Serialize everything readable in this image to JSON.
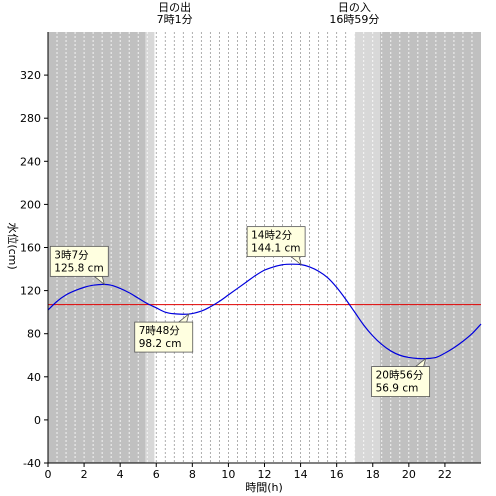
{
  "chart_data": {
    "type": "line",
    "x_unit": "h",
    "xlabel": "時間(h)",
    "ylabel": "水位(cm)",
    "xlim": [
      0,
      24
    ],
    "ylim": [
      -40,
      360
    ],
    "x_ticks": [
      0,
      2,
      4,
      6,
      8,
      10,
      12,
      14,
      16,
      18,
      20,
      22
    ],
    "y_ticks": [
      -40,
      0,
      40,
      80,
      120,
      160,
      200,
      240,
      280,
      320
    ],
    "grid": "vertical dotted every 0.5h",
    "reference_line": {
      "y": 107,
      "color": "#e00000"
    },
    "series": [
      {
        "color": "#0000dd",
        "x": [
          0,
          0.5,
          1,
          1.5,
          2,
          2.5,
          3.12,
          3.5,
          4,
          4.5,
          5,
          5.5,
          6,
          6.5,
          7,
          7.8,
          8.5,
          9,
          9.5,
          10,
          10.5,
          11,
          11.5,
          12,
          12.5,
          13,
          13.5,
          14.03,
          14.5,
          15,
          15.5,
          16,
          16.5,
          17,
          17.5,
          18,
          18.5,
          19,
          19.5,
          20,
          20.5,
          20.93,
          21.5,
          22,
          22.5,
          23,
          23.5,
          24
        ],
        "y": [
          102,
          110,
          116,
          120,
          123,
          125,
          125.8,
          125,
          122,
          118,
          113,
          108,
          104,
          100,
          98.5,
          98.2,
          101,
          105,
          110,
          116,
          122,
          128,
          134,
          139,
          142,
          144,
          144.5,
          144.1,
          142,
          138,
          132,
          123,
          112,
          100,
          88,
          78,
          70,
          64,
          60,
          58,
          57,
          56.9,
          58,
          62,
          67,
          73,
          80,
          89
        ]
      }
    ],
    "shading": {
      "night_color": "#c0c0c0",
      "twilight_color": "#d8d8d8",
      "day_color": "#ffffff",
      "night_before_end": 5.4,
      "twilight_morning_end": 5.9,
      "twilight_evening_start": 17.0,
      "night_after_start": 18.4
    },
    "sun_events": [
      {
        "label": "日の出",
        "time": "7時1分",
        "x": 7.02
      },
      {
        "label": "日の入",
        "time": "16時59分",
        "x": 16.98
      }
    ],
    "annotations": [
      {
        "time": "3時7分",
        "value": "125.8 cm",
        "x": 3.12,
        "y": 125.8,
        "placement": "above"
      },
      {
        "time": "7時48分",
        "value": "98.2 cm",
        "x": 7.8,
        "y": 98.2,
        "placement": "below"
      },
      {
        "time": "14時2分",
        "value": "144.1 cm",
        "x": 14.03,
        "y": 144.1,
        "placement": "above"
      },
      {
        "time": "20時56分",
        "value": "56.9 cm",
        "x": 20.93,
        "y": 56.9,
        "placement": "below"
      }
    ]
  }
}
